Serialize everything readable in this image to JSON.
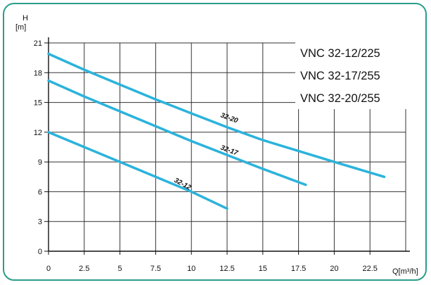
{
  "chart_data": {
    "type": "line",
    "ylabel": "H",
    "ylabel_unit": "[m]",
    "xlabel": "Q[m³/h]",
    "xlim": [
      0,
      25
    ],
    "ylim": [
      0,
      21
    ],
    "x_ticks": [
      0,
      2.5,
      5,
      7.5,
      10,
      12.5,
      15,
      17.5,
      20,
      22.5
    ],
    "y_ticks": [
      0,
      3,
      6,
      9,
      12,
      15,
      18,
      21
    ],
    "grid": true,
    "series": [
      {
        "name": "32-12",
        "color": "#2bb3dc",
        "x": [
          0,
          2.5,
          5,
          7.5,
          10,
          12.5
        ],
        "y": [
          12,
          10.5,
          9.0,
          7.5,
          6.0,
          4.3
        ]
      },
      {
        "name": "32-17",
        "color": "#2bb3dc",
        "x": [
          0,
          2.5,
          5,
          7.5,
          10,
          12.5,
          15,
          18
        ],
        "y": [
          17.2,
          15.6,
          14.1,
          12.6,
          11.1,
          9.7,
          8.3,
          6.7
        ]
      },
      {
        "name": "32-20",
        "color": "#2bb3dc",
        "x": [
          0,
          2.5,
          5,
          7.5,
          10,
          12.5,
          15,
          17.5,
          20,
          23.5
        ],
        "y": [
          19.9,
          18.3,
          16.8,
          15.3,
          13.9,
          12.5,
          11.2,
          10.1,
          9.0,
          7.5
        ]
      }
    ],
    "models": [
      "VNC 32-12/225",
      "VNC 32-17/255",
      "VNC 32-20/255"
    ],
    "colors": {
      "frame": "#2a9d8a",
      "grid": "#333333",
      "curve": "#2bb3dc"
    }
  }
}
